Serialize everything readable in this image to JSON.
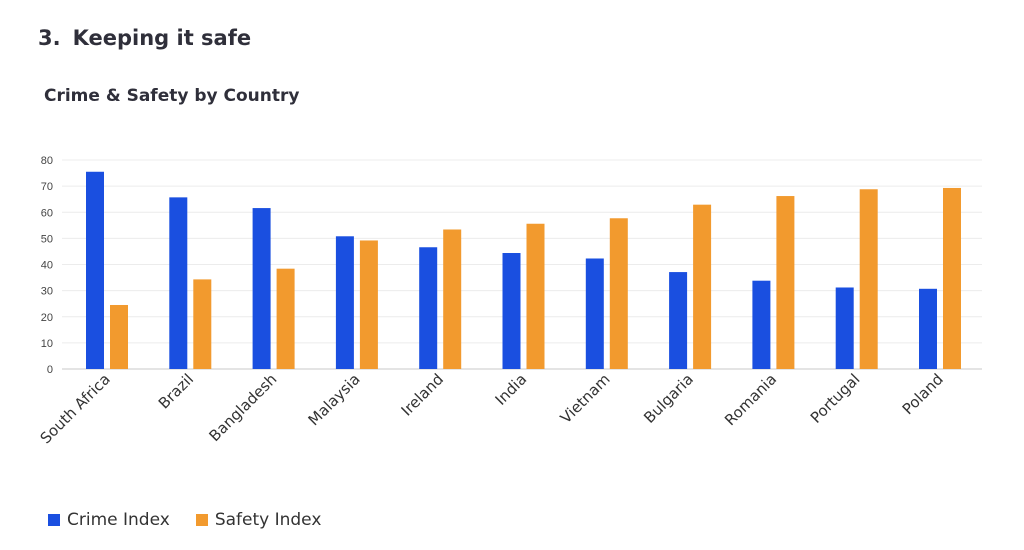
{
  "section": {
    "number": "3.",
    "title": "Keeping it safe"
  },
  "chart_data": {
    "type": "bar",
    "title": "Crime & Safety by Country",
    "categories": [
      "South Africa",
      "Brazil",
      "Bangladesh",
      "Malaysia",
      "Ireland",
      "India",
      "Vietnam",
      "Bulgaria",
      "Romania",
      "Portugal",
      "Poland"
    ],
    "series": [
      {
        "name": "Crime Index",
        "color": "#1a4fe0",
        "values": [
          75.5,
          65.7,
          61.6,
          50.8,
          46.6,
          44.4,
          42.3,
          37.1,
          33.8,
          31.2,
          30.7
        ]
      },
      {
        "name": "Safety Index",
        "color": "#f29a2e",
        "values": [
          24.5,
          34.3,
          38.4,
          49.2,
          53.4,
          55.6,
          57.7,
          62.9,
          66.2,
          68.8,
          69.3
        ]
      }
    ],
    "yticks": [
      0,
      10,
      20,
      30,
      40,
      50,
      60,
      70,
      80
    ],
    "ylim": [
      0,
      80
    ],
    "grid": true,
    "legend_position": "bottom-left"
  }
}
